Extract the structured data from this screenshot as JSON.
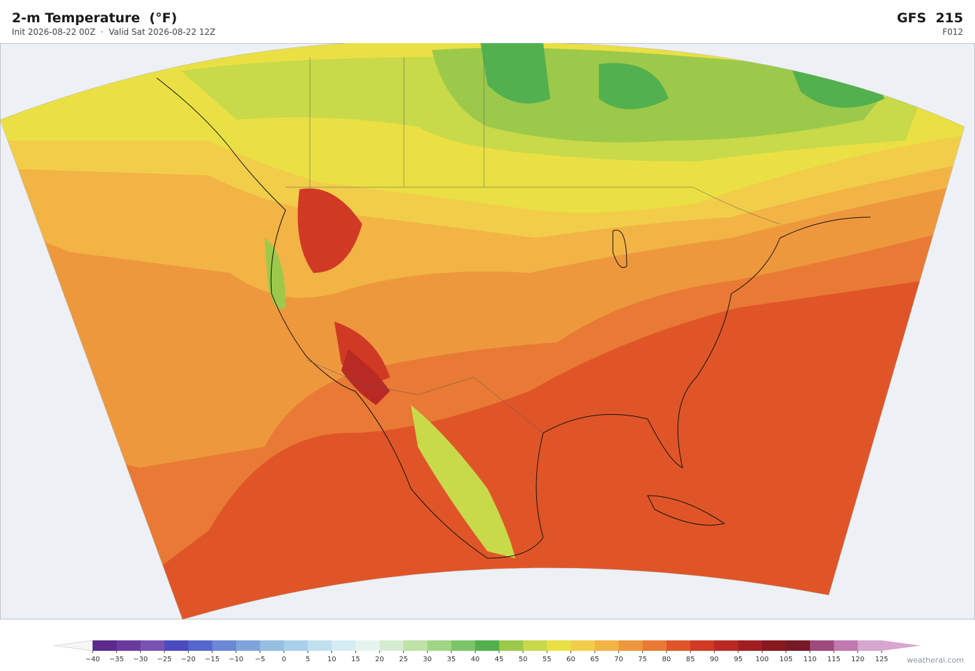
{
  "header": {
    "title": "2-m Temperature  (°F)",
    "subtitle": "Init 2026-08-22 00Z  ·  Valid Sat 2026-08-22 12Z",
    "model": "GFS  215",
    "forecast_hour": "F012"
  },
  "colorbar": {
    "ticks": [
      {
        "value": -40,
        "label": "−40"
      },
      {
        "value": -35,
        "label": "−35"
      },
      {
        "value": -30,
        "label": "−30"
      },
      {
        "value": -25,
        "label": "−25"
      },
      {
        "value": -20,
        "label": "−20"
      },
      {
        "value": -15,
        "label": "−15"
      },
      {
        "value": -10,
        "label": "−10"
      },
      {
        "value": -5,
        "label": "−5"
      },
      0,
      5,
      10,
      15,
      20,
      25,
      30,
      35,
      40,
      45,
      50,
      55,
      60,
      65,
      70,
      75,
      80,
      85,
      90,
      95,
      100,
      105,
      110,
      115,
      120,
      125
    ],
    "colors": [
      "#5b2a8c",
      "#6a3a9e",
      "#7a52b3",
      "#4a4bbf",
      "#5566cc",
      "#6a88d6",
      "#7fa3dc",
      "#95bee3",
      "#a9d0ea",
      "#c0e0ef",
      "#d5ecf2",
      "#e6f4f0",
      "#d6ecd0",
      "#bde3a6",
      "#9fd686",
      "#7cc66a",
      "#52b04e",
      "#9cc94a",
      "#c8d94a",
      "#eae044",
      "#f2cd4a",
      "#f2b444",
      "#ee983e",
      "#e97a35",
      "#e05528",
      "#d03a25",
      "#b82a23",
      "#a01e22",
      "#86181f",
      "#761a28",
      "#9e4a7c",
      "#c07ab0",
      "#d6a6cf"
    ],
    "under_color": "#f6f6f6",
    "over_color": "#d9a6d0"
  },
  "watermark": "weatherai.com"
}
